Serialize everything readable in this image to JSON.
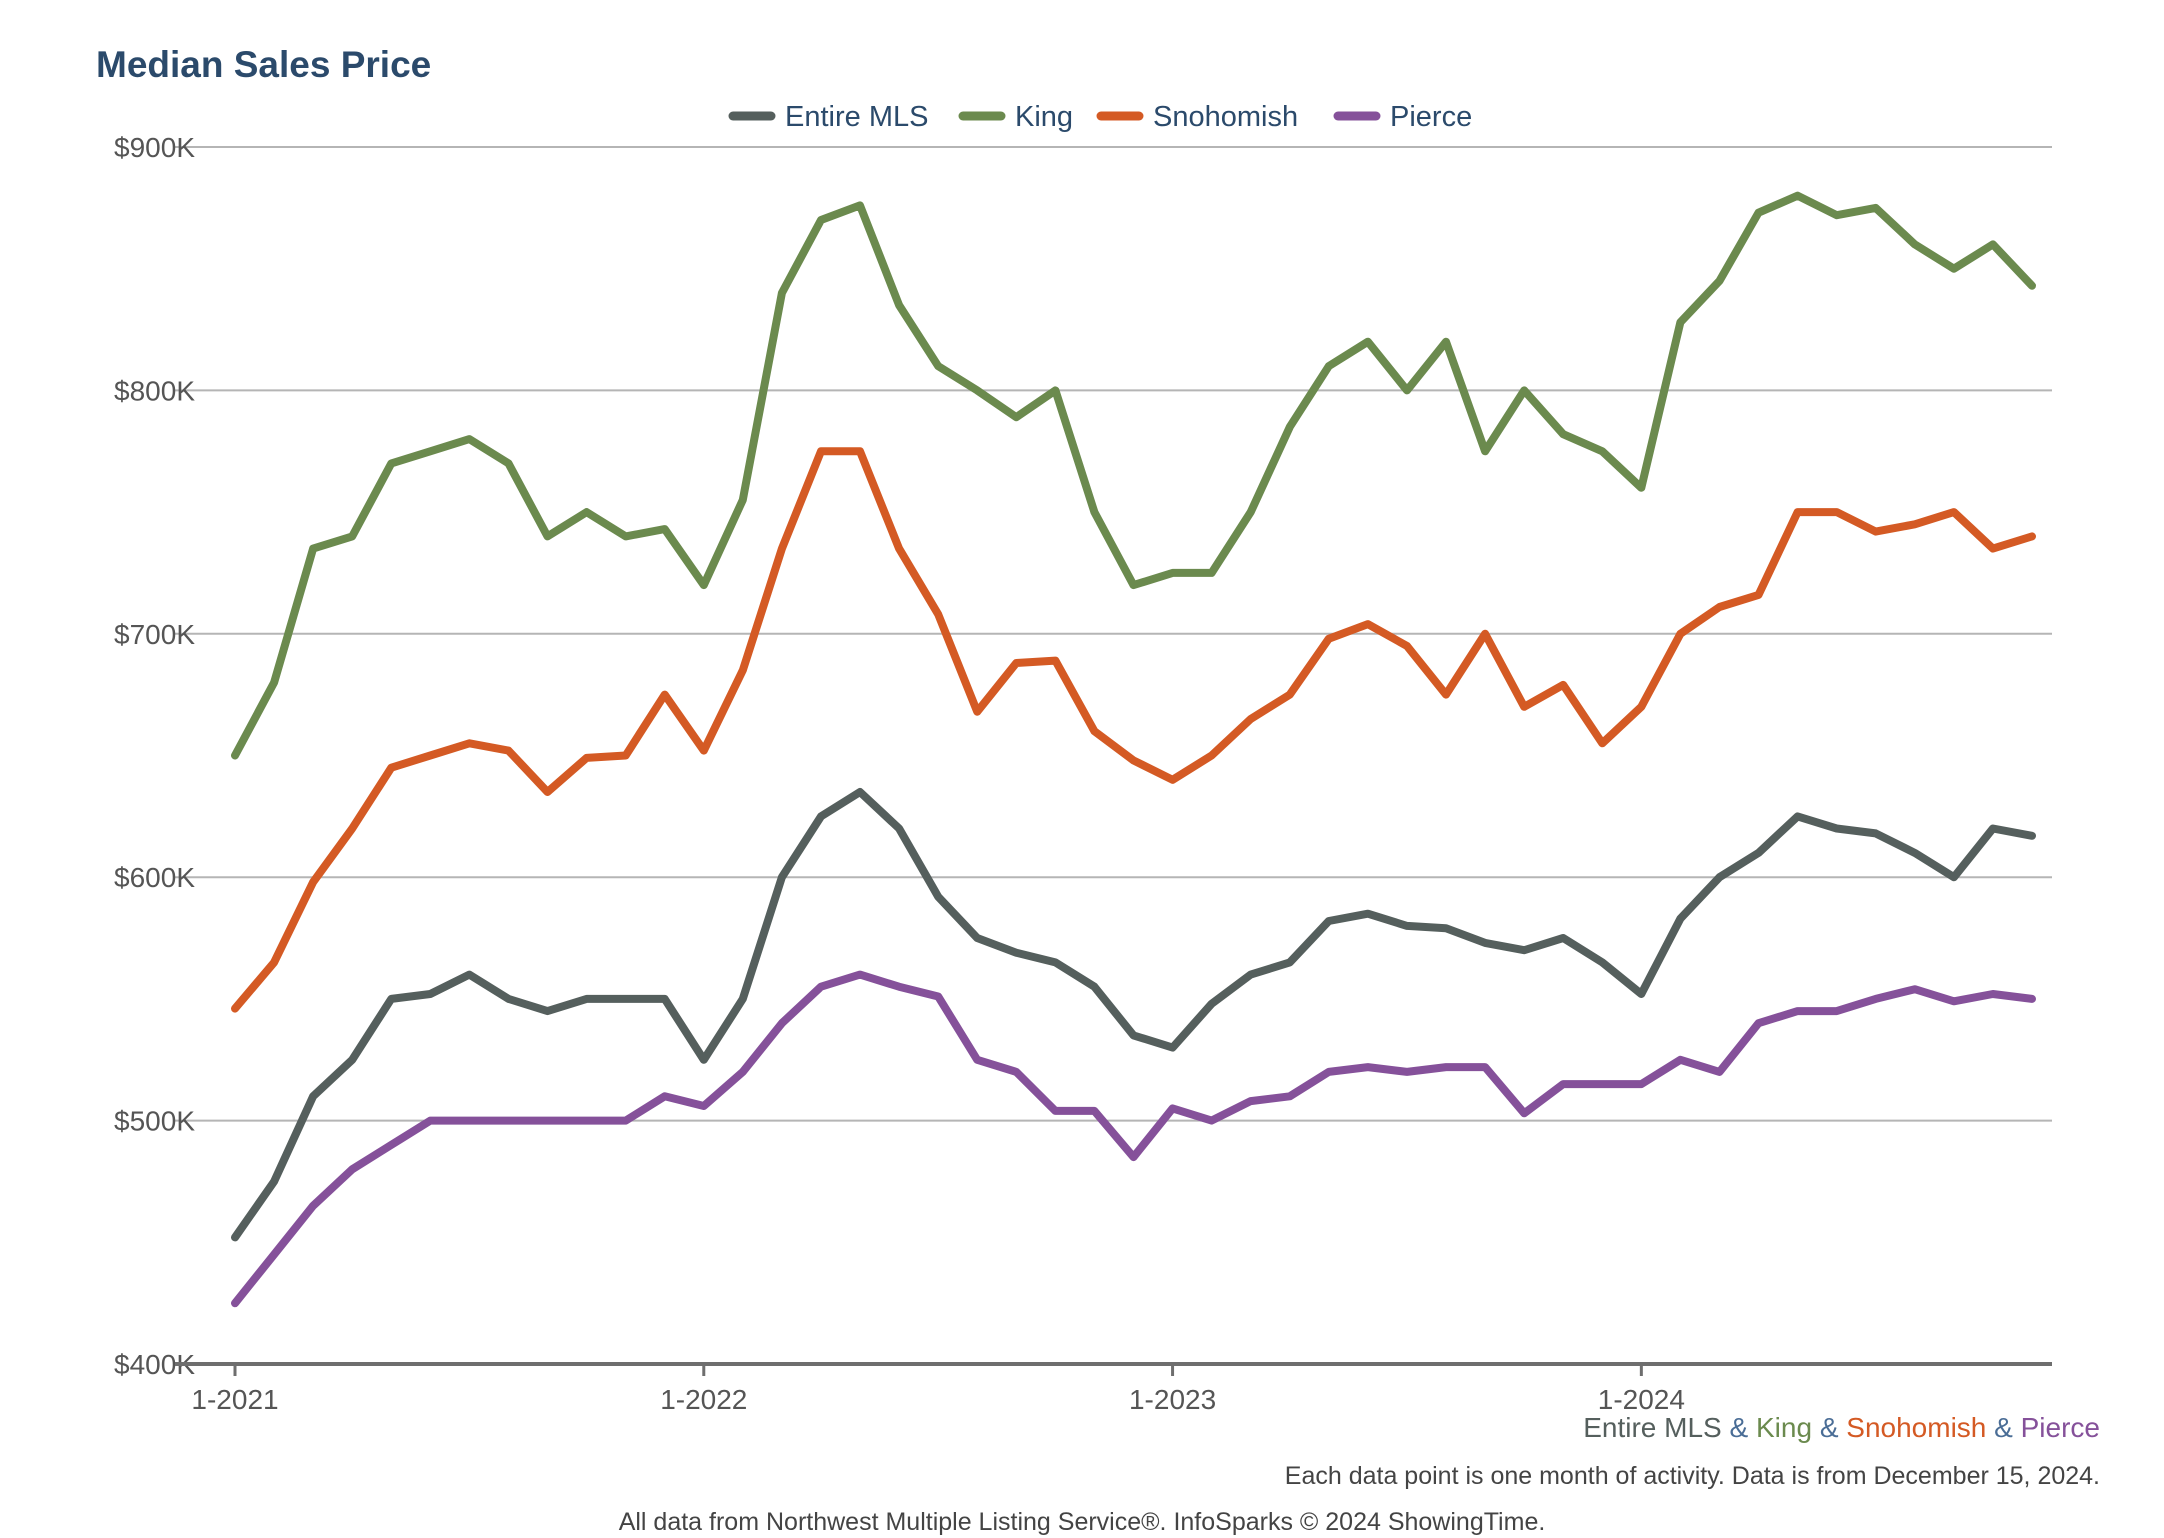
{
  "title": "Median Sales Price",
  "chart_data": {
    "type": "line",
    "title": "Median Sales Price",
    "xlabel": "",
    "ylabel": "",
    "ylim": [
      400,
      900
    ],
    "y_ticks": [
      400,
      500,
      600,
      700,
      800,
      900
    ],
    "y_tick_labels": [
      "$400K",
      "$500K",
      "$600K",
      "$700K",
      "$800K",
      "$900K"
    ],
    "x_tick_labels": [
      "1-2021",
      "1-2022",
      "1-2023",
      "1-2024"
    ],
    "x_tick_index": [
      0,
      12,
      24,
      36
    ],
    "x_count": 47,
    "legend_position": "top-center",
    "series": [
      {
        "name": "Entire MLS",
        "color": "#555f5d",
        "values": [
          452,
          475,
          510,
          525,
          550,
          552,
          560,
          550,
          545,
          550,
          550,
          550,
          525,
          550,
          600,
          625,
          635,
          620,
          592,
          575,
          569,
          565,
          555,
          535,
          530,
          548,
          560,
          565,
          582,
          585,
          580,
          579,
          573,
          570,
          575,
          565,
          552,
          583,
          600,
          610,
          625,
          620,
          618,
          610,
          600,
          620,
          617
        ]
      },
      {
        "name": "King",
        "color": "#6b8a4e",
        "values": [
          650,
          680,
          735,
          740,
          770,
          775,
          780,
          770,
          740,
          750,
          740,
          743,
          720,
          755,
          840,
          870,
          876,
          835,
          810,
          800,
          789,
          800,
          750,
          720,
          725,
          725,
          750,
          785,
          810,
          820,
          800,
          820,
          775,
          800,
          782,
          775,
          760,
          828,
          845,
          873,
          880,
          872,
          875,
          860,
          850,
          860,
          843
        ]
      },
      {
        "name": "Snohomish",
        "color": "#d45a24",
        "values": [
          546,
          565,
          598,
          620,
          645,
          650,
          655,
          652,
          635,
          649,
          650,
          675,
          652,
          685,
          735,
          775,
          775,
          735,
          708,
          668,
          688,
          689,
          660,
          648,
          640,
          650,
          665,
          675,
          698,
          704,
          695,
          675,
          700,
          670,
          679,
          655,
          670,
          700,
          711,
          716,
          750,
          750,
          742,
          745,
          750,
          735,
          740
        ]
      },
      {
        "name": "Pierce",
        "color": "#85519a",
        "values": [
          425,
          445,
          465,
          480,
          490,
          500,
          500,
          500,
          500,
          500,
          500,
          510,
          506,
          520,
          540,
          555,
          560,
          555,
          551,
          525,
          520,
          504,
          504,
          485,
          505,
          500,
          508,
          510,
          520,
          522,
          520,
          522,
          522,
          503,
          515,
          515,
          515,
          525,
          520,
          540,
          545,
          545,
          550,
          554,
          549,
          552,
          550
        ]
      }
    ]
  },
  "sub_legend": {
    "entire_mls": "Entire MLS",
    "amp": "&",
    "king": "King",
    "snohomish": "Snohomish",
    "pierce": "Pierce"
  },
  "note": "Each data point is one month of activity. Data is from December 15, 2024.",
  "source": "All data from Northwest Multiple Listing Service®. InfoSparks © 2024 ShowingTime."
}
